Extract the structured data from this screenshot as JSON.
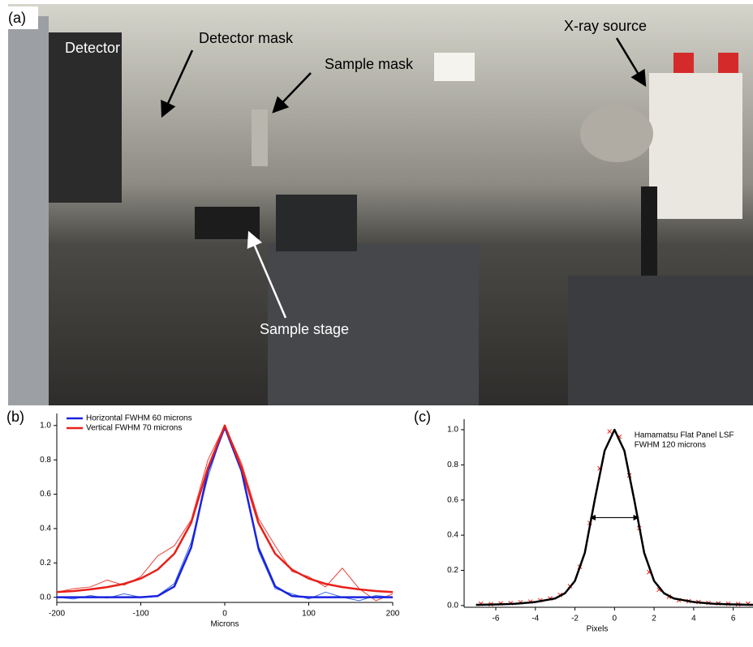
{
  "photo": {
    "label": "(a)",
    "detector": "Detector",
    "detector_mask": "Detector mask",
    "sample_mask": "Sample mask",
    "xray_source": "X-ray source",
    "sample_stage": "Sample stage"
  },
  "chart_data": [
    {
      "type": "line",
      "panel_label": "(b)",
      "xlabel": "Microns",
      "x": [
        -200,
        -180,
        -160,
        -140,
        -120,
        -100,
        -80,
        -60,
        -40,
        -20,
        0,
        20,
        40,
        60,
        80,
        100,
        120,
        140,
        160,
        180,
        200
      ],
      "xlim": [
        -200,
        200
      ],
      "xticks": [
        -200,
        -100,
        0,
        100,
        200
      ],
      "ylim": [
        -0.03,
        1.07
      ],
      "yticks": [
        {
          "value": 0,
          "label": "0.0"
        },
        0.2,
        0.4,
        0.6,
        0.8,
        {
          "value": 1,
          "label": "1.0"
        }
      ],
      "legend": "top-left",
      "series": [
        {
          "name": "Horizontal FWHM 60 microns",
          "color": "#1a22e0",
          "style": "thick",
          "values": [
            0,
            0,
            0,
            0,
            0,
            0,
            0.007,
            0.063,
            0.29,
            0.735,
            0.99,
            0.735,
            0.29,
            0.063,
            0.007,
            0,
            0,
            0,
            0,
            0,
            0
          ]
        },
        {
          "name": "Vertical FWHM 70 microns",
          "color": "#e8201a",
          "style": "thick",
          "values": [
            0.03,
            0.036,
            0.046,
            0.059,
            0.078,
            0.109,
            0.161,
            0.254,
            0.434,
            0.754,
            1.0,
            0.754,
            0.434,
            0.254,
            0.161,
            0.109,
            0.078,
            0.059,
            0.046,
            0.036,
            0.03
          ]
        },
        {
          "color": "#3a6ae0",
          "style": "thin",
          "values": [
            0.0,
            -0.01,
            0.01,
            -0.005,
            0.02,
            0.0,
            0.01,
            0.08,
            0.32,
            0.7,
            1.0,
            0.76,
            0.27,
            0.05,
            0.02,
            -0.01,
            0.03,
            0.0,
            -0.02,
            0.01,
            0.0
          ]
        },
        {
          "color": "#e8403a",
          "style": "thin",
          "values": [
            0.03,
            0.05,
            0.06,
            0.1,
            0.07,
            0.12,
            0.24,
            0.3,
            0.45,
            0.8,
            1.0,
            0.78,
            0.46,
            0.3,
            0.15,
            0.12,
            0.06,
            0.17,
            0.05,
            -0.02,
            0.02
          ]
        }
      ]
    },
    {
      "type": "line",
      "panel_label": "(c)",
      "xlabel": "Pixels",
      "x": [
        -7,
        -6.5,
        -6,
        -5.5,
        -5,
        -4.5,
        -4,
        -3.5,
        -3,
        -2.5,
        -2,
        -1.5,
        -1,
        -0.5,
        0,
        0.5,
        1,
        1.5,
        2,
        2.5,
        3,
        3.5,
        4,
        4.5,
        5,
        5.5,
        6,
        6.5,
        7
      ],
      "xlim": [
        -7.6,
        7
      ],
      "xticks": [
        -6,
        -4,
        -2,
        0,
        2,
        4,
        6
      ],
      "ylim": [
        -0.01,
        1.06
      ],
      "yticks": [
        {
          "value": 0,
          "label": "0.0"
        },
        0.2,
        0.4,
        0.6,
        0.8,
        {
          "value": 1,
          "label": "1.0"
        }
      ],
      "annotation": [
        "Hamamatsu Flat Panel LSF",
        "FWHM 120 microns"
      ],
      "arrow": {
        "x": [
          -1.2,
          1.2
        ],
        "y": 0.5
      },
      "series": [
        {
          "color": "#000000",
          "style": "thick",
          "values": [
            0.004,
            0.005,
            0.006,
            0.008,
            0.01,
            0.015,
            0.02,
            0.03,
            0.04,
            0.07,
            0.14,
            0.3,
            0.6,
            0.88,
            1.0,
            0.88,
            0.6,
            0.3,
            0.14,
            0.07,
            0.04,
            0.03,
            0.02,
            0.015,
            0.01,
            0.008,
            0.006,
            0.005,
            0.004
          ]
        },
        {
          "color": "#e8201a",
          "style": "x",
          "x": [
            -6.75,
            -6.25,
            -5.75,
            -5.25,
            -4.75,
            -4.25,
            -3.75,
            -3.25,
            -2.75,
            -2.25,
            -1.75,
            -1.25,
            -0.75,
            -0.25,
            0.25,
            0.75,
            1.25,
            1.75,
            2.25,
            2.75,
            3.25,
            3.75,
            4.25,
            4.75,
            5.25,
            5.75,
            6.25,
            6.75
          ],
          "values": [
            0.01,
            0.008,
            0.012,
            0.014,
            0.018,
            0.022,
            0.03,
            0.04,
            0.06,
            0.11,
            0.22,
            0.47,
            0.78,
            0.99,
            0.96,
            0.74,
            0.44,
            0.19,
            0.09,
            0.05,
            0.03,
            0.025,
            0.02,
            0.015,
            0.012,
            0.01,
            0.008,
            0.01
          ]
        }
      ]
    }
  ]
}
